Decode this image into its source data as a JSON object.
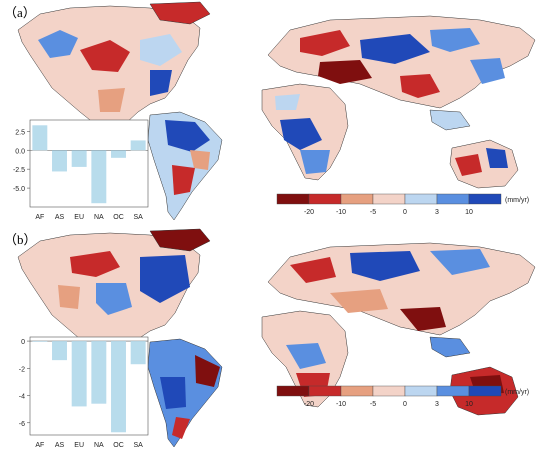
{
  "panels": [
    {
      "label": "（a）",
      "colorbar": {
        "ticks": [
          "-20",
          "-10",
          "-5",
          "0",
          "3",
          "10"
        ],
        "unit": "(mm/yr)",
        "colors": [
          "#7f0f0f",
          "#c62a2a",
          "#e6a080",
          "#f3d3c8",
          "#bcd6f0",
          "#5a8fe0",
          "#2049b8"
        ]
      },
      "chart_data": {
        "type": "bar",
        "categories": [
          "AF",
          "AS",
          "EU",
          "NA",
          "OC",
          "SA"
        ],
        "values": [
          3.3,
          -2.8,
          -2.2,
          -7.0,
          -1.0,
          1.3
        ],
        "ylim": [
          -7.5,
          4.0
        ],
        "yticks": [
          "2.5",
          "0.0",
          "-2.5",
          "-5.0"
        ],
        "bar_color": "#b8dcec"
      }
    },
    {
      "label": "（b）",
      "colorbar": {
        "ticks": [
          "-20",
          "-10",
          "-5",
          "0",
          "3",
          "10"
        ],
        "unit": "(mm/yr)",
        "colors": [
          "#7f0f0f",
          "#c62a2a",
          "#e6a080",
          "#f3d3c8",
          "#bcd6f0",
          "#5a8fe0",
          "#2049b8"
        ]
      },
      "chart_data": {
        "type": "bar",
        "categories": [
          "AF",
          "AS",
          "EU",
          "NA",
          "OC",
          "SA"
        ],
        "values": [
          -0.05,
          -1.4,
          -4.8,
          -4.6,
          -6.7,
          -1.7
        ],
        "ylim": [
          -6.9,
          0.3
        ],
        "yticks": [
          "0",
          "-2",
          "-4",
          "-6"
        ],
        "bar_color": "#b8dcec"
      }
    }
  ]
}
